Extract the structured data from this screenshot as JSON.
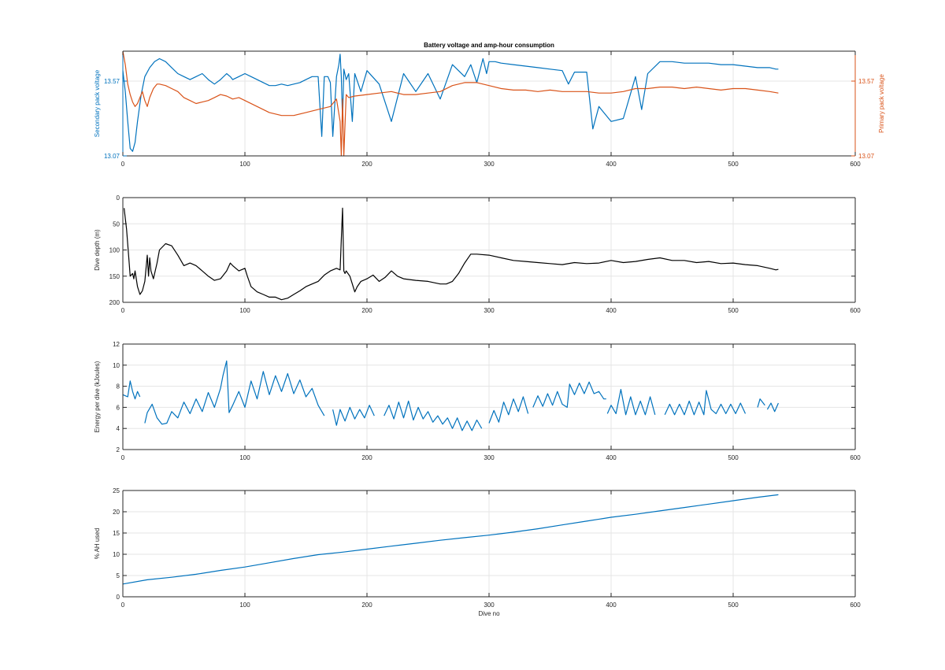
{
  "colors": {
    "blue": "#0072BD",
    "orange": "#D95319",
    "black": "#000000",
    "axis": "#262626",
    "grid": "#e5e5e5"
  },
  "chart_data": [
    {
      "type": "line",
      "title": "Battery voltage and amp-hour consumption",
      "xlabel": "",
      "ylabel": "Secondary pack voltage",
      "ylabel_right": "Primary pack voltage",
      "xlim": [
        0,
        600
      ],
      "ylim": [
        13.07,
        13.77
      ],
      "ylim_right": [
        13.07,
        13.77
      ],
      "x_ticks": [
        0,
        100,
        200,
        300,
        400,
        500,
        600
      ],
      "y_ticks": [
        "13.07",
        "13.57"
      ],
      "y_ticks_right": [
        "13.07",
        "13.57"
      ],
      "grid": true,
      "series": [
        {
          "axis": "left",
          "color": "#0072BD",
          "x": [
            0,
            2,
            4,
            6,
            8,
            10,
            12,
            15,
            18,
            22,
            26,
            30,
            35,
            40,
            45,
            50,
            55,
            60,
            65,
            70,
            75,
            80,
            85,
            88,
            90,
            95,
            100,
            105,
            110,
            115,
            120,
            125,
            130,
            135,
            140,
            145,
            150,
            155,
            160,
            163,
            165,
            168,
            170,
            172,
            175,
            177,
            178,
            179,
            180,
            181,
            183,
            185,
            188,
            190,
            195,
            200,
            210,
            220,
            230,
            240,
            250,
            260,
            270,
            280,
            285,
            290,
            295,
            298,
            300,
            305,
            310,
            320,
            330,
            340,
            350,
            360,
            365,
            370,
            380,
            385,
            390,
            400,
            410,
            420,
            425,
            430,
            440,
            450,
            460,
            470,
            480,
            490,
            500,
            510,
            520,
            530,
            535,
            537
          ],
          "y": [
            13.64,
            13.5,
            13.3,
            13.12,
            13.1,
            13.16,
            13.3,
            13.48,
            13.6,
            13.66,
            13.7,
            13.72,
            13.7,
            13.66,
            13.62,
            13.6,
            13.58,
            13.6,
            13.62,
            13.58,
            13.55,
            13.58,
            13.62,
            13.6,
            13.58,
            13.6,
            13.62,
            13.6,
            13.58,
            13.56,
            13.54,
            13.54,
            13.55,
            13.54,
            13.55,
            13.56,
            13.58,
            13.6,
            13.6,
            13.2,
            13.6,
            13.6,
            13.56,
            13.2,
            13.6,
            13.68,
            13.75,
            13.6,
            13.3,
            13.65,
            13.58,
            13.62,
            13.3,
            13.62,
            13.5,
            13.64,
            13.55,
            13.3,
            13.62,
            13.5,
            13.62,
            13.45,
            13.68,
            13.6,
            13.68,
            13.56,
            13.72,
            13.62,
            13.7,
            13.7,
            13.69,
            13.68,
            13.67,
            13.66,
            13.65,
            13.64,
            13.55,
            13.63,
            13.63,
            13.25,
            13.4,
            13.3,
            13.32,
            13.6,
            13.38,
            13.62,
            13.7,
            13.7,
            13.69,
            13.69,
            13.69,
            13.68,
            13.68,
            13.67,
            13.66,
            13.66,
            13.65,
            13.65
          ]
        },
        {
          "axis": "right",
          "color": "#D95319",
          "x": [
            0,
            2,
            4,
            6,
            8,
            10,
            12,
            14,
            16,
            18,
            20,
            22,
            25,
            28,
            30,
            35,
            40,
            45,
            50,
            55,
            60,
            65,
            70,
            75,
            80,
            85,
            90,
            95,
            100,
            110,
            120,
            130,
            140,
            150,
            160,
            170,
            175,
            178,
            179,
            180,
            181,
            183,
            185,
            190,
            200,
            210,
            220,
            230,
            240,
            250,
            260,
            270,
            280,
            290,
            300,
            310,
            320,
            330,
            340,
            350,
            360,
            370,
            380,
            390,
            400,
            410,
            420,
            430,
            440,
            450,
            460,
            470,
            480,
            490,
            500,
            510,
            520,
            530,
            537
          ],
          "y": [
            13.77,
            13.68,
            13.55,
            13.48,
            13.43,
            13.4,
            13.42,
            13.46,
            13.5,
            13.44,
            13.4,
            13.46,
            13.52,
            13.55,
            13.55,
            13.54,
            13.52,
            13.5,
            13.46,
            13.44,
            13.42,
            13.43,
            13.44,
            13.46,
            13.48,
            13.47,
            13.45,
            13.46,
            13.44,
            13.4,
            13.36,
            13.34,
            13.34,
            13.36,
            13.38,
            13.4,
            13.45,
            13.3,
            13.07,
            13.45,
            13.07,
            13.48,
            13.46,
            13.47,
            13.48,
            13.49,
            13.5,
            13.48,
            13.48,
            13.49,
            13.5,
            13.54,
            13.56,
            13.56,
            13.54,
            13.52,
            13.51,
            13.51,
            13.5,
            13.51,
            13.5,
            13.5,
            13.5,
            13.49,
            13.49,
            13.5,
            13.52,
            13.52,
            13.53,
            13.53,
            13.52,
            13.53,
            13.52,
            13.51,
            13.52,
            13.52,
            13.51,
            13.5,
            13.49
          ]
        }
      ]
    },
    {
      "type": "line",
      "title": "",
      "xlabel": "",
      "ylabel": "Dive depth (m)",
      "xlim": [
        0,
        600
      ],
      "ylim": [
        0,
        200
      ],
      "y_reversed": true,
      "x_ticks": [
        0,
        100,
        200,
        300,
        400,
        500,
        600
      ],
      "y_ticks": [
        0,
        50,
        100,
        150,
        200
      ],
      "grid": true,
      "series": [
        {
          "color": "#000000",
          "x": [
            1,
            3,
            5,
            6,
            8,
            9,
            10,
            12,
            14,
            16,
            18,
            20,
            21,
            22,
            23,
            25,
            28,
            30,
            35,
            40,
            45,
            50,
            55,
            60,
            65,
            70,
            75,
            80,
            85,
            88,
            90,
            95,
            100,
            102,
            105,
            110,
            115,
            120,
            125,
            130,
            135,
            140,
            145,
            150,
            155,
            160,
            165,
            170,
            175,
            178,
            179,
            180,
            181,
            182,
            183,
            186,
            188,
            190,
            192,
            195,
            200,
            205,
            210,
            215,
            220,
            225,
            230,
            240,
            250,
            260,
            265,
            270,
            275,
            280,
            285,
            290,
            300,
            310,
            320,
            330,
            340,
            350,
            360,
            370,
            380,
            390,
            400,
            410,
            420,
            430,
            440,
            450,
            460,
            470,
            480,
            490,
            500,
            510,
            520,
            530,
            535,
            537
          ],
          "y": [
            20,
            60,
            120,
            150,
            145,
            155,
            140,
            170,
            185,
            178,
            160,
            110,
            150,
            115,
            140,
            155,
            125,
            100,
            88,
            92,
            110,
            130,
            125,
            130,
            140,
            150,
            158,
            155,
            140,
            125,
            130,
            140,
            135,
            150,
            170,
            180,
            185,
            190,
            190,
            195,
            192,
            185,
            178,
            170,
            165,
            160,
            148,
            140,
            135,
            138,
            80,
            20,
            140,
            145,
            140,
            150,
            165,
            180,
            170,
            160,
            155,
            148,
            160,
            152,
            140,
            150,
            155,
            158,
            160,
            165,
            165,
            160,
            145,
            125,
            108,
            108,
            110,
            115,
            120,
            122,
            124,
            126,
            128,
            124,
            126,
            125,
            120,
            124,
            122,
            118,
            115,
            120,
            120,
            124,
            122,
            126,
            125,
            128,
            130,
            135,
            138,
            137
          ]
        }
      ]
    },
    {
      "type": "line",
      "title": "",
      "xlabel": "",
      "ylabel": "Energy per dive (kJoules)",
      "xlim": [
        0,
        600
      ],
      "ylim": [
        2,
        12
      ],
      "x_ticks": [
        0,
        100,
        200,
        300,
        400,
        500,
        600
      ],
      "y_ticks": [
        2,
        4,
        6,
        8,
        10,
        12
      ],
      "grid": true,
      "series": [
        {
          "color": "#0072BD",
          "x": [
            0,
            2,
            4,
            6,
            8,
            10,
            12,
            14
          ],
          "y": [
            7.2,
            7.1,
            7.0,
            8.5,
            7.5,
            6.8,
            7.5,
            7.0
          ]
        },
        {
          "color": "#0072BD",
          "x": [
            18,
            20,
            24,
            28,
            32,
            36,
            40,
            45,
            50,
            55,
            60,
            65,
            70,
            75,
            80,
            82,
            85,
            87,
            90,
            95,
            100,
            105,
            110,
            115,
            120,
            125,
            130,
            135,
            140,
            145,
            150,
            155,
            160,
            165
          ],
          "y": [
            4.5,
            5.5,
            6.3,
            5.0,
            4.4,
            4.5,
            5.6,
            5.0,
            6.5,
            5.4,
            6.8,
            5.6,
            7.4,
            6.0,
            7.8,
            9.0,
            10.4,
            5.5,
            6.2,
            7.5,
            6.0,
            8.5,
            6.8,
            9.4,
            7.2,
            9.0,
            7.5,
            9.2,
            7.3,
            8.6,
            7.0,
            7.8,
            6.2,
            5.2
          ]
        },
        {
          "color": "#0072BD",
          "x": [
            172,
            175,
            178,
            182,
            186,
            190,
            194,
            198,
            202,
            206
          ],
          "y": [
            5.8,
            4.3,
            5.8,
            4.7,
            6.0,
            4.9,
            5.8,
            5.0,
            6.2,
            5.2
          ]
        },
        {
          "color": "#0072BD",
          "x": [
            214,
            218,
            222,
            226,
            230,
            234,
            238,
            242,
            246,
            250,
            254,
            258,
            262,
            266,
            270,
            274,
            278,
            282,
            286,
            290,
            294
          ],
          "y": [
            5.2,
            6.2,
            4.9,
            6.5,
            5.0,
            6.6,
            4.8,
            6.0,
            4.9,
            5.6,
            4.6,
            5.2,
            4.4,
            5.0,
            4.0,
            5.0,
            3.8,
            4.7,
            3.8,
            4.8,
            4.0
          ]
        },
        {
          "color": "#0072BD",
          "x": [
            300,
            304,
            308,
            312,
            316,
            320,
            324,
            328,
            332
          ],
          "y": [
            4.5,
            5.7,
            4.6,
            6.5,
            5.3,
            6.8,
            5.6,
            7.0,
            5.4
          ]
        },
        {
          "color": "#0072BD",
          "x": [
            336,
            340,
            344,
            348,
            352,
            356,
            360,
            364,
            366,
            370,
            374,
            378,
            382,
            386,
            390,
            394,
            396
          ],
          "y": [
            6.0,
            7.1,
            6.1,
            7.3,
            6.2,
            7.5,
            6.3,
            6.0,
            8.2,
            7.2,
            8.3,
            7.3,
            8.4,
            7.3,
            7.5,
            6.8,
            6.8
          ]
        },
        {
          "color": "#0072BD",
          "x": [
            397,
            400,
            404,
            408,
            412,
            416,
            420,
            424,
            428,
            432,
            436
          ],
          "y": [
            5.4,
            6.2,
            5.4,
            7.7,
            5.3,
            7.0,
            5.3,
            6.6,
            5.3,
            7.0,
            5.3
          ]
        },
        {
          "color": "#0072BD",
          "x": [
            444,
            448,
            452,
            456,
            460,
            464,
            468,
            472,
            476,
            478,
            482,
            486,
            490,
            494,
            498,
            502,
            506,
            510
          ],
          "y": [
            5.3,
            6.3,
            5.3,
            6.3,
            5.3,
            6.6,
            5.3,
            6.5,
            5.3,
            7.6,
            5.8,
            5.4,
            6.3,
            5.4,
            6.3,
            5.4,
            6.4,
            5.4
          ]
        },
        {
          "color": "#0072BD",
          "x": [
            520,
            522,
            526
          ],
          "y": [
            6.0,
            6.8,
            6.2
          ]
        },
        {
          "color": "#0072BD",
          "x": [
            528,
            531,
            534,
            537
          ],
          "y": [
            5.8,
            6.4,
            5.6,
            6.4
          ]
        }
      ]
    },
    {
      "type": "line",
      "title": "",
      "xlabel": "Dive no",
      "ylabel": "% AH used",
      "xlim": [
        0,
        600
      ],
      "ylim": [
        0,
        25
      ],
      "x_ticks": [
        0,
        100,
        200,
        300,
        400,
        500,
        600
      ],
      "y_ticks": [
        0,
        5,
        10,
        15,
        20,
        25
      ],
      "grid": true,
      "series": [
        {
          "color": "#0072BD",
          "x": [
            0,
            20,
            40,
            60,
            80,
            100,
            120,
            140,
            160,
            180,
            200,
            220,
            240,
            260,
            280,
            300,
            320,
            340,
            360,
            380,
            400,
            420,
            440,
            460,
            480,
            500,
            520,
            537
          ],
          "y": [
            3.0,
            4.0,
            4.6,
            5.3,
            6.2,
            7.0,
            8.0,
            9.0,
            9.9,
            10.5,
            11.2,
            11.9,
            12.6,
            13.3,
            13.9,
            14.5,
            15.2,
            16.0,
            16.9,
            17.8,
            18.7,
            19.4,
            20.2,
            21.0,
            21.8,
            22.6,
            23.4,
            24.0
          ]
        }
      ]
    }
  ]
}
